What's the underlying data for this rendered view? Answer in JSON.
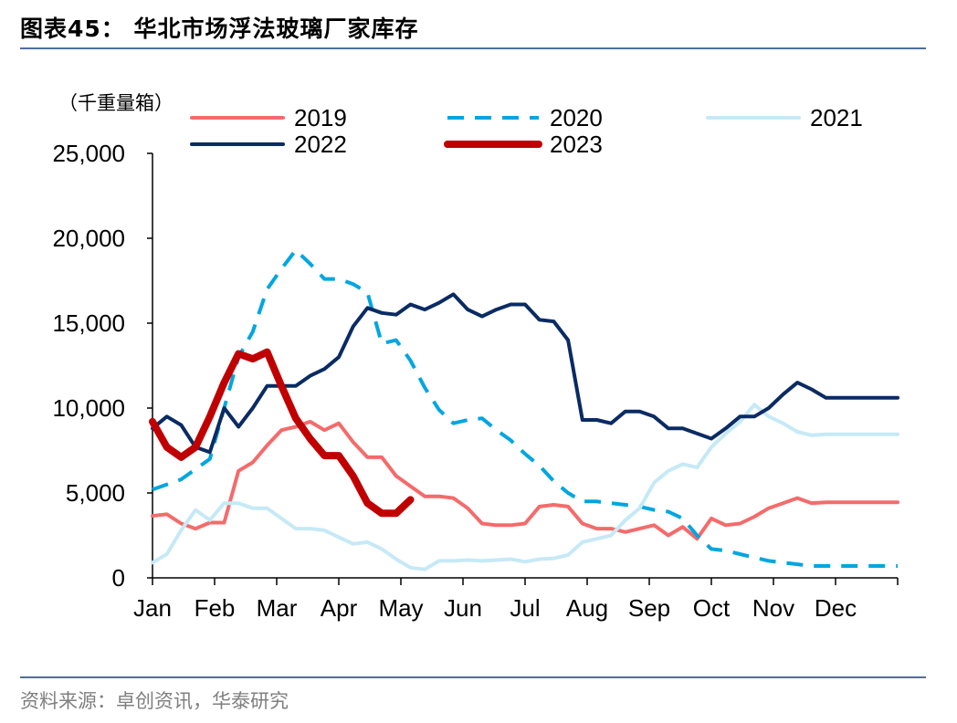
{
  "figure": {
    "title": "图表45： 华北市场浮法玻璃厂家库存",
    "source": "资料来源：卓创资讯，华泰研究"
  },
  "chart_data": {
    "type": "line",
    "unit_label": "（千重量箱）",
    "ylim": [
      0,
      25000
    ],
    "yticks": [
      "0",
      "5,000",
      "10,000",
      "15,000",
      "20,000",
      "25,000"
    ],
    "ytick_values": [
      0,
      5000,
      10000,
      15000,
      20000,
      25000
    ],
    "xticks": [
      "Jan",
      "Feb",
      "Mar",
      "Apr",
      "May",
      "Jun",
      "Jul",
      "Aug",
      "Sep",
      "Oct",
      "Nov",
      "Dec"
    ],
    "xlim": [
      0,
      52
    ],
    "grid": false,
    "legend_position": "top",
    "series": [
      {
        "name": "2019",
        "color": "#f46b6b",
        "style": "solid",
        "width": 4,
        "x": [
          0,
          1,
          2,
          3,
          4,
          5,
          6,
          7,
          8,
          9,
          10,
          11,
          12,
          13,
          14,
          15,
          16,
          17,
          18,
          19,
          20,
          21,
          22,
          23,
          24,
          25,
          26,
          27,
          28,
          29,
          30,
          31,
          32,
          33,
          34,
          35,
          36,
          37,
          38,
          39,
          40,
          41,
          42,
          43,
          44,
          45,
          46,
          47,
          48,
          49,
          50,
          51,
          52
        ],
        "values": [
          3650,
          3750,
          3200,
          2900,
          3250,
          3250,
          6300,
          6800,
          7800,
          8700,
          8900,
          9200,
          8700,
          9100,
          8000,
          7100,
          7100,
          6000,
          5400,
          4800,
          4800,
          4700,
          4100,
          3200,
          3100,
          3100,
          3200,
          4200,
          4300,
          4200,
          3200,
          2900,
          2900,
          2700,
          2900,
          3100,
          2500,
          3000,
          2300,
          3500,
          3100,
          3200,
          3600,
          4100,
          4400,
          4700,
          4400,
          4450,
          4450,
          4450,
          4450,
          4450,
          4450
        ]
      },
      {
        "name": "2020",
        "color": "#00a6e0",
        "style": "dashed",
        "width": 4,
        "x": [
          0,
          1,
          2,
          3,
          4,
          5,
          6,
          7,
          8,
          9,
          10,
          11,
          12,
          13,
          14,
          15,
          16,
          17,
          18,
          19,
          20,
          21,
          22,
          23,
          24,
          25,
          26,
          27,
          28,
          29,
          30,
          31,
          32,
          33,
          34,
          35,
          36,
          37,
          38,
          39,
          40,
          41,
          42,
          43,
          44,
          45,
          46,
          47,
          48,
          49,
          50,
          51,
          52
        ],
        "values": [
          5200,
          5500,
          5800,
          6400,
          7000,
          10000,
          13000,
          14500,
          17000,
          18200,
          19300,
          18500,
          17600,
          17600,
          17300,
          16800,
          13800,
          14000,
          12800,
          11200,
          9900,
          9100,
          9300,
          9400,
          8700,
          8100,
          7300,
          6600,
          5700,
          5000,
          4500,
          4500,
          4400,
          4300,
          4200,
          4000,
          3900,
          3500,
          2500,
          1700,
          1600,
          1400,
          1200,
          1000,
          900,
          800,
          700,
          700,
          700,
          700,
          700,
          700,
          700
        ]
      },
      {
        "name": "2021",
        "color": "#c6e9f6",
        "style": "solid",
        "width": 4,
        "x": [
          0,
          1,
          2,
          3,
          4,
          5,
          6,
          7,
          8,
          9,
          10,
          11,
          12,
          13,
          14,
          15,
          16,
          17,
          18,
          19,
          20,
          21,
          22,
          23,
          24,
          25,
          26,
          27,
          28,
          29,
          30,
          31,
          32,
          33,
          34,
          35,
          36,
          37,
          38,
          39,
          40,
          41,
          42,
          43,
          44,
          45,
          46,
          47,
          48,
          49,
          50,
          51,
          52
        ],
        "values": [
          900,
          1400,
          2800,
          4000,
          3400,
          4400,
          4400,
          4100,
          4100,
          3500,
          2900,
          2900,
          2800,
          2400,
          2000,
          2100,
          1700,
          1100,
          600,
          500,
          1000,
          1000,
          1050,
          1000,
          1050,
          1100,
          950,
          1100,
          1150,
          1350,
          2100,
          2300,
          2500,
          3400,
          4100,
          5600,
          6300,
          6700,
          6500,
          7700,
          8500,
          9200,
          10200,
          9500,
          9100,
          8600,
          8400,
          8450,
          8450,
          8450,
          8450,
          8450,
          8450
        ]
      },
      {
        "name": "2022",
        "color": "#0a2b63",
        "style": "solid",
        "width": 4,
        "x": [
          0,
          1,
          2,
          3,
          4,
          5,
          6,
          7,
          8,
          9,
          10,
          11,
          12,
          13,
          14,
          15,
          16,
          17,
          18,
          19,
          20,
          21,
          22,
          23,
          24,
          25,
          26,
          27,
          28,
          29,
          30,
          31,
          32,
          33,
          34,
          35,
          36,
          37,
          38,
          39,
          40,
          41,
          42,
          43,
          44,
          45,
          46,
          47,
          48,
          49,
          50,
          51,
          52
        ],
        "values": [
          8800,
          9500,
          9000,
          7700,
          7400,
          10000,
          8900,
          10000,
          11300,
          11300,
          11300,
          11900,
          12300,
          13000,
          14800,
          15900,
          15600,
          15500,
          16100,
          15800,
          16200,
          16700,
          15800,
          15400,
          15800,
          16100,
          16100,
          15200,
          15100,
          14000,
          9300,
          9300,
          9100,
          9800,
          9800,
          9500,
          8800,
          8800,
          8500,
          8200,
          8800,
          9500,
          9500,
          10000,
          10800,
          11500,
          11100,
          10600,
          10600,
          10600,
          10600,
          10600,
          10600
        ]
      },
      {
        "name": "2023",
        "color": "#c00000",
        "style": "solid",
        "width": 8,
        "x": [
          0,
          1,
          2,
          3,
          4,
          5,
          6,
          7,
          8,
          9,
          10,
          11,
          12,
          13,
          14,
          15,
          16,
          17,
          18
        ],
        "values": [
          9200,
          7700,
          7100,
          7700,
          9500,
          11500,
          13200,
          12900,
          13300,
          11300,
          9400,
          8200,
          7200,
          7200,
          6000,
          4400,
          3800,
          3800,
          4600
        ]
      }
    ]
  }
}
